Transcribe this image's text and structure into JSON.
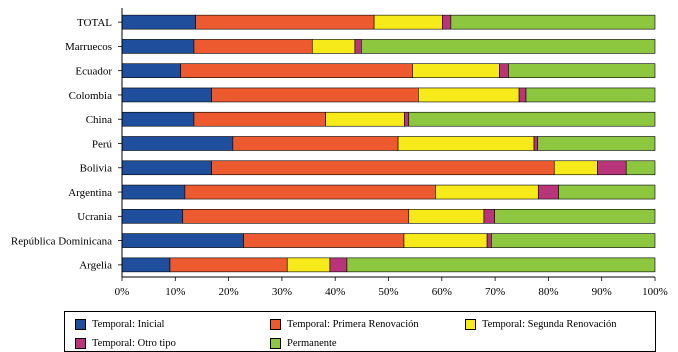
{
  "chart_data": {
    "type": "bar",
    "orientation": "horizontal",
    "stacked": true,
    "percent": true,
    "categories": [
      "TOTAL",
      "Marruecos",
      "Ecuador",
      "Colombia",
      "China",
      "Perú",
      "Bolivia",
      "Argentina",
      "Ucrania",
      "República Dominicana",
      "Argelia"
    ],
    "series": [
      {
        "name": "Temporal: Inicial",
        "color": "#1f4e9c",
        "values": [
          13.8,
          13.5,
          11.0,
          16.8,
          13.5,
          20.8,
          16.8,
          11.8,
          11.4,
          22.8,
          9.0
        ]
      },
      {
        "name": "Temporal: Primera Renovación",
        "color": "#ee5a2f",
        "values": [
          33.5,
          22.2,
          43.5,
          38.8,
          24.7,
          31.0,
          64.3,
          47.0,
          42.4,
          30.1,
          22.0
        ]
      },
      {
        "name": "Temporal: Segunda Renovación",
        "color": "#f7ea1b",
        "values": [
          12.8,
          8.0,
          16.3,
          18.9,
          14.8,
          25.5,
          8.1,
          19.3,
          14.1,
          15.6,
          8.0
        ]
      },
      {
        "name": "Temporal: Otro tipo",
        "color": "#b8357c",
        "values": [
          1.6,
          1.2,
          1.7,
          1.3,
          0.8,
          0.7,
          5.4,
          3.8,
          2.0,
          0.8,
          3.2
        ]
      },
      {
        "name": "Permanente",
        "color": "#8dc63f",
        "values": [
          38.3,
          55.1,
          27.5,
          24.2,
          46.2,
          22.0,
          5.4,
          18.1,
          30.1,
          30.7,
          57.8
        ]
      }
    ],
    "xlim": [
      0,
      100
    ],
    "xticks": [
      "0%",
      "10%",
      "20%",
      "30%",
      "40%",
      "50%",
      "60%",
      "70%",
      "80%",
      "90%",
      "100%"
    ],
    "title": "",
    "xlabel": "",
    "ylabel": "",
    "grid": false,
    "legend_position": "bottom"
  }
}
